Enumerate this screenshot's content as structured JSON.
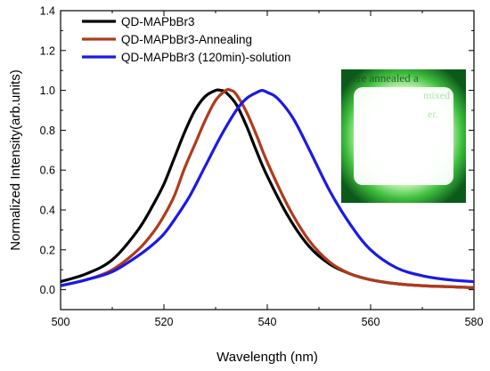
{
  "chart_data": {
    "type": "line",
    "title": "",
    "xlabel": "Wavelength (nm)",
    "ylabel": "Normalized Intensity(arb.units)",
    "xlim": [
      500,
      580
    ],
    "ylim": [
      -0.1,
      1.4
    ],
    "xticks": [
      500,
      520,
      540,
      560,
      580
    ],
    "yticks": [
      0.0,
      0.2,
      0.4,
      0.6,
      0.8,
      1.0,
      1.2,
      1.4
    ],
    "grid": false,
    "legend_position": "top-left",
    "inset": {
      "type": "photo",
      "description_color": "#3fbf3f",
      "visible_text_fragments": [
        "were annealed a",
        "mixed",
        "er."
      ]
    },
    "series": [
      {
        "name": "QD-MAPbBr3",
        "color": "#000000",
        "x": [
          500,
          505,
          510,
          515,
          518,
          520,
          522,
          524,
          526,
          528,
          530,
          531,
          532,
          534,
          536,
          538,
          540,
          544,
          548,
          552,
          556,
          560,
          565,
          570,
          575,
          580
        ],
        "y": [
          0.04,
          0.08,
          0.15,
          0.3,
          0.43,
          0.53,
          0.66,
          0.79,
          0.9,
          0.97,
          1.0,
          1.0,
          0.99,
          0.93,
          0.82,
          0.69,
          0.57,
          0.37,
          0.22,
          0.13,
          0.08,
          0.05,
          0.03,
          0.02,
          0.015,
          0.01
        ]
      },
      {
        "name": "QD-MAPbBr3-Annealing",
        "color": "#b03a1c",
        "x": [
          500,
          505,
          510,
          515,
          518,
          520,
          522,
          524,
          526,
          528,
          530,
          532,
          533,
          534,
          536,
          538,
          540,
          544,
          548,
          552,
          556,
          560,
          565,
          570,
          575,
          580
        ],
        "y": [
          0.02,
          0.05,
          0.1,
          0.2,
          0.29,
          0.37,
          0.47,
          0.61,
          0.73,
          0.85,
          0.95,
          1.0,
          1.0,
          0.98,
          0.89,
          0.77,
          0.64,
          0.42,
          0.25,
          0.14,
          0.08,
          0.05,
          0.03,
          0.02,
          0.015,
          0.01
        ]
      },
      {
        "name": "QD-MAPbBr3 (120min)-solution",
        "color": "#1a1ae6",
        "x": [
          500,
          505,
          510,
          515,
          518,
          520,
          522,
          525,
          528,
          531,
          534,
          536,
          538,
          539,
          540,
          542,
          545,
          548,
          552,
          556,
          560,
          565,
          570,
          575,
          580
        ],
        "y": [
          0.02,
          0.05,
          0.09,
          0.17,
          0.23,
          0.28,
          0.35,
          0.47,
          0.62,
          0.77,
          0.9,
          0.96,
          0.99,
          1.0,
          0.99,
          0.96,
          0.86,
          0.71,
          0.5,
          0.33,
          0.2,
          0.11,
          0.07,
          0.05,
          0.04
        ]
      }
    ]
  }
}
